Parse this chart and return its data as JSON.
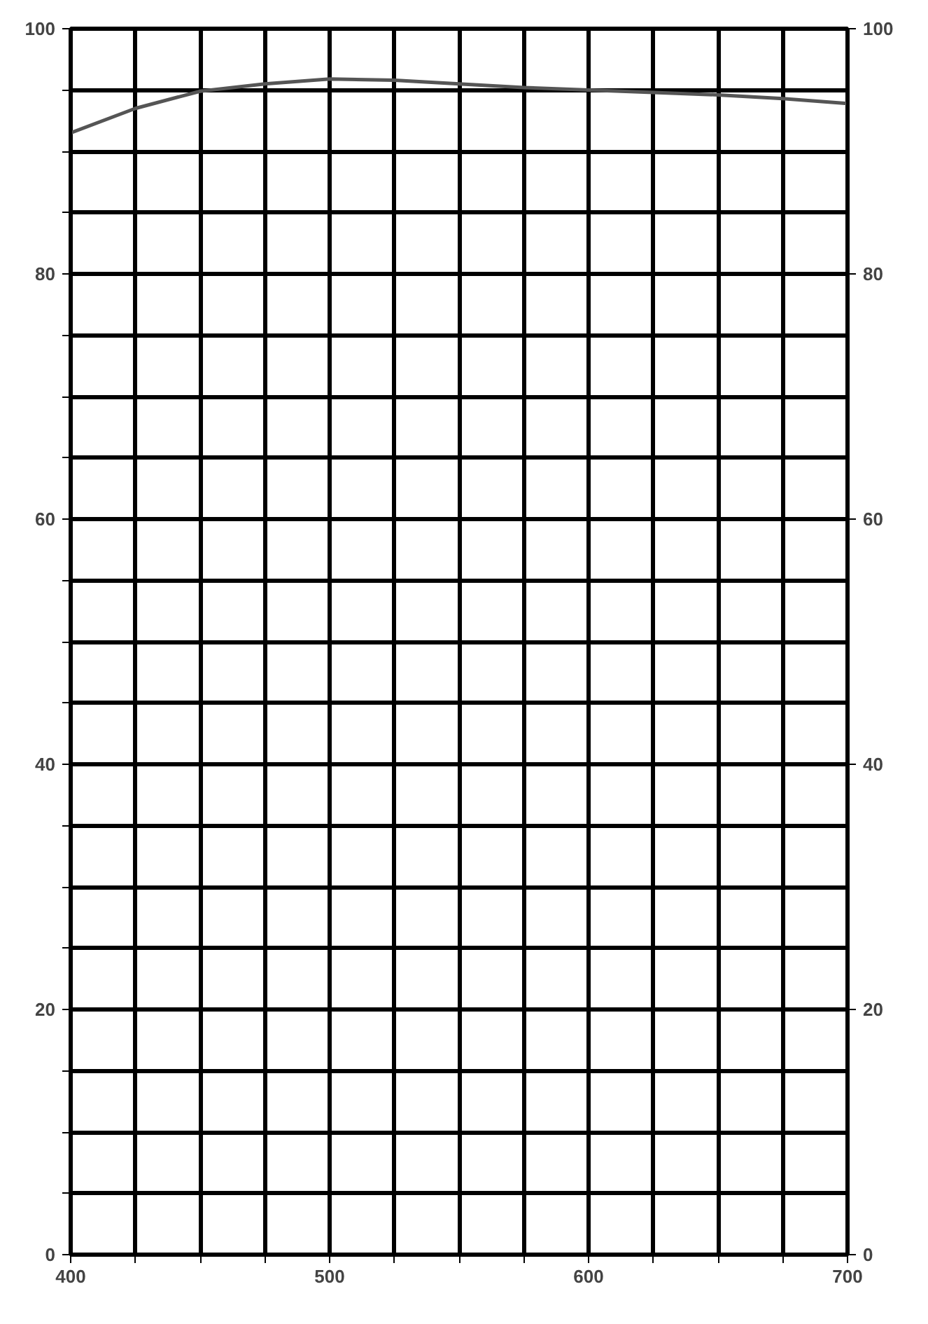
{
  "chart_data": {
    "type": "line",
    "x": [
      400,
      425,
      450,
      475,
      500,
      525,
      550,
      575,
      600,
      625,
      650,
      675,
      700
    ],
    "series": [
      {
        "color": "#555555",
        "values": [
          91.5,
          93.5,
          94.9,
          95.5,
          95.9,
          95.8,
          95.5,
          95.2,
          95.0,
          94.8,
          94.6,
          94.3,
          93.9
        ]
      }
    ],
    "xlim": [
      400,
      700
    ],
    "ylim": [
      0,
      100
    ],
    "y2lim": [
      0,
      100
    ],
    "xticks": [
      400,
      {
        "value": 425,
        "label": null
      },
      {
        "value": 450,
        "label": null
      },
      {
        "value": 475,
        "label": null
      },
      500,
      {
        "value": 525,
        "label": null
      },
      {
        "value": 550,
        "label": null
      },
      {
        "value": 575,
        "label": null
      },
      600,
      {
        "value": 625,
        "label": null
      },
      {
        "value": 650,
        "label": null
      },
      {
        "value": 675,
        "label": null
      },
      700
    ],
    "yticks": [
      0,
      {
        "value": 5,
        "label": null
      },
      {
        "value": 10,
        "label": null
      },
      {
        "value": 15,
        "label": null
      },
      20,
      {
        "value": 25,
        "label": null
      },
      {
        "value": 30,
        "label": null
      },
      {
        "value": 35,
        "label": null
      },
      40,
      {
        "value": 45,
        "label": null
      },
      {
        "value": 50,
        "label": null
      },
      {
        "value": 55,
        "label": null
      },
      60,
      {
        "value": 65,
        "label": null
      },
      {
        "value": 70,
        "label": null
      },
      {
        "value": 75,
        "label": null
      },
      80,
      {
        "value": 85,
        "label": null
      },
      {
        "value": 90,
        "label": null
      },
      {
        "value": 95,
        "label": null
      },
      100
    ],
    "y2ticks": [
      0,
      20,
      40,
      60,
      80,
      100
    ],
    "grid": true,
    "marker": "none",
    "line_style": "solid"
  }
}
